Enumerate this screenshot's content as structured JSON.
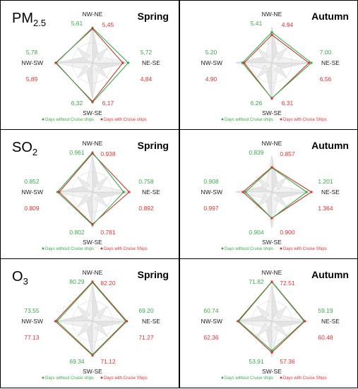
{
  "colors": {
    "without": "#3aa84a",
    "with": "#e03030",
    "border": "#000000"
  },
  "legend": {
    "without": "Days without Cruise ships",
    "with": "Days with Cruise Ships",
    "without_alt": "Days without Cruise ships",
    "with_alt": "Days with Cruise ships"
  },
  "directions": [
    "NW-NE",
    "NE-SE",
    "SW-SE",
    "NW-SW"
  ],
  "chart_data": [
    {
      "type": "radar",
      "pollutant": "PM",
      "pollutant_sub": "2.5",
      "season": "Spring",
      "axes": [
        "NW-NE",
        "NE-SE",
        "SW-SE",
        "NW-SW"
      ],
      "series": [
        {
          "name": "Days without Cruise ships",
          "values": [
            5.61,
            5.72,
            6.32,
            5.78
          ]
        },
        {
          "name": "Days with Cruise Ships",
          "values": [
            5.45,
            4.84,
            6.17,
            5.89
          ]
        }
      ],
      "labels_without": [
        "5,61",
        "5,72",
        "6,32",
        "5,78"
      ],
      "labels_with": [
        "5,45",
        "4,84",
        "6,17",
        "5,89"
      ]
    },
    {
      "type": "radar",
      "pollutant": "",
      "pollutant_sub": "",
      "season": "Autumn",
      "axes": [
        "NW-NE",
        "NE-SE",
        "SW-SE",
        "NW-SW"
      ],
      "series": [
        {
          "name": "Days without Cruise ships",
          "values": [
            5.41,
            7.0,
            6.26,
            5.2
          ]
        },
        {
          "name": "Days with Cruise Ships",
          "values": [
            4.94,
            6.56,
            6.31,
            4.9
          ]
        }
      ],
      "labels_without": [
        "5.41",
        "7.00",
        "6.26",
        "5.20"
      ],
      "labels_with": [
        "4.94",
        "6.56",
        "6.31",
        "4.90"
      ]
    },
    {
      "type": "radar",
      "pollutant": "SO",
      "pollutant_sub": "2",
      "season": "Spring",
      "axes": [
        "NW-NE",
        "NE-SE",
        "SW-SE",
        "NW-SW"
      ],
      "series": [
        {
          "name": "Days without Cruise ships",
          "values": [
            0.961,
            0.758,
            0.802,
            0.852
          ]
        },
        {
          "name": "Days with Cruise Ships",
          "values": [
            0.938,
            0.892,
            0.781,
            0.809
          ]
        }
      ],
      "labels_without": [
        "0.961",
        "0.758",
        "0.802",
        "0.852"
      ],
      "labels_with": [
        "0.938",
        "0.892",
        "0.781",
        "0.809"
      ]
    },
    {
      "type": "radar",
      "pollutant": "",
      "pollutant_sub": "",
      "season": "Autumn",
      "axes": [
        "NW-NE",
        "NE-SE",
        "SW-SE",
        "NW-SW"
      ],
      "series": [
        {
          "name": "Days without Cruise ships",
          "values": [
            0.839,
            1.201,
            0.904,
            0.908
          ]
        },
        {
          "name": "Days with Cruise Ships",
          "values": [
            0.857,
            1.364,
            0.9,
            0.997
          ]
        }
      ],
      "labels_without": [
        "0.839",
        "1.201",
        "0.904",
        "0.908"
      ],
      "labels_with": [
        "0.857",
        "1.364",
        "0.900",
        "0.997"
      ]
    },
    {
      "type": "radar",
      "pollutant": "O",
      "pollutant_sub": "3",
      "season": "Spring",
      "axes": [
        "NW-NE",
        "NE-SE",
        "SW-SE",
        "NW-SW"
      ],
      "series": [
        {
          "name": "Days without Cruise ships",
          "values": [
            80.29,
            69.2,
            69.34,
            73.55
          ]
        },
        {
          "name": "Days with Cruise Ships",
          "values": [
            82.2,
            71.27,
            71.12,
            77.13
          ]
        }
      ],
      "labels_without": [
        "80.29",
        "69.20",
        "69.34",
        "73.55"
      ],
      "labels_with": [
        "82.20",
        "71.27",
        "71.12",
        "77.13"
      ]
    },
    {
      "type": "radar",
      "pollutant": "",
      "pollutant_sub": "",
      "season": "Autumn",
      "axes": [
        "NW-NE",
        "NE-SE",
        "SW-SE",
        "NW-SW"
      ],
      "series": [
        {
          "name": "Days without Cruise ships",
          "values": [
            71.82,
            59.19,
            53.91,
            60.74
          ]
        },
        {
          "name": "Days with Cruise Ships",
          "values": [
            72.51,
            60.48,
            57.36,
            62.36
          ]
        }
      ],
      "labels_without": [
        "71.82",
        "59.19",
        "53.91",
        "60.74"
      ],
      "labels_with": [
        "72.51",
        "60.48",
        "57.36",
        "62.36"
      ]
    }
  ]
}
